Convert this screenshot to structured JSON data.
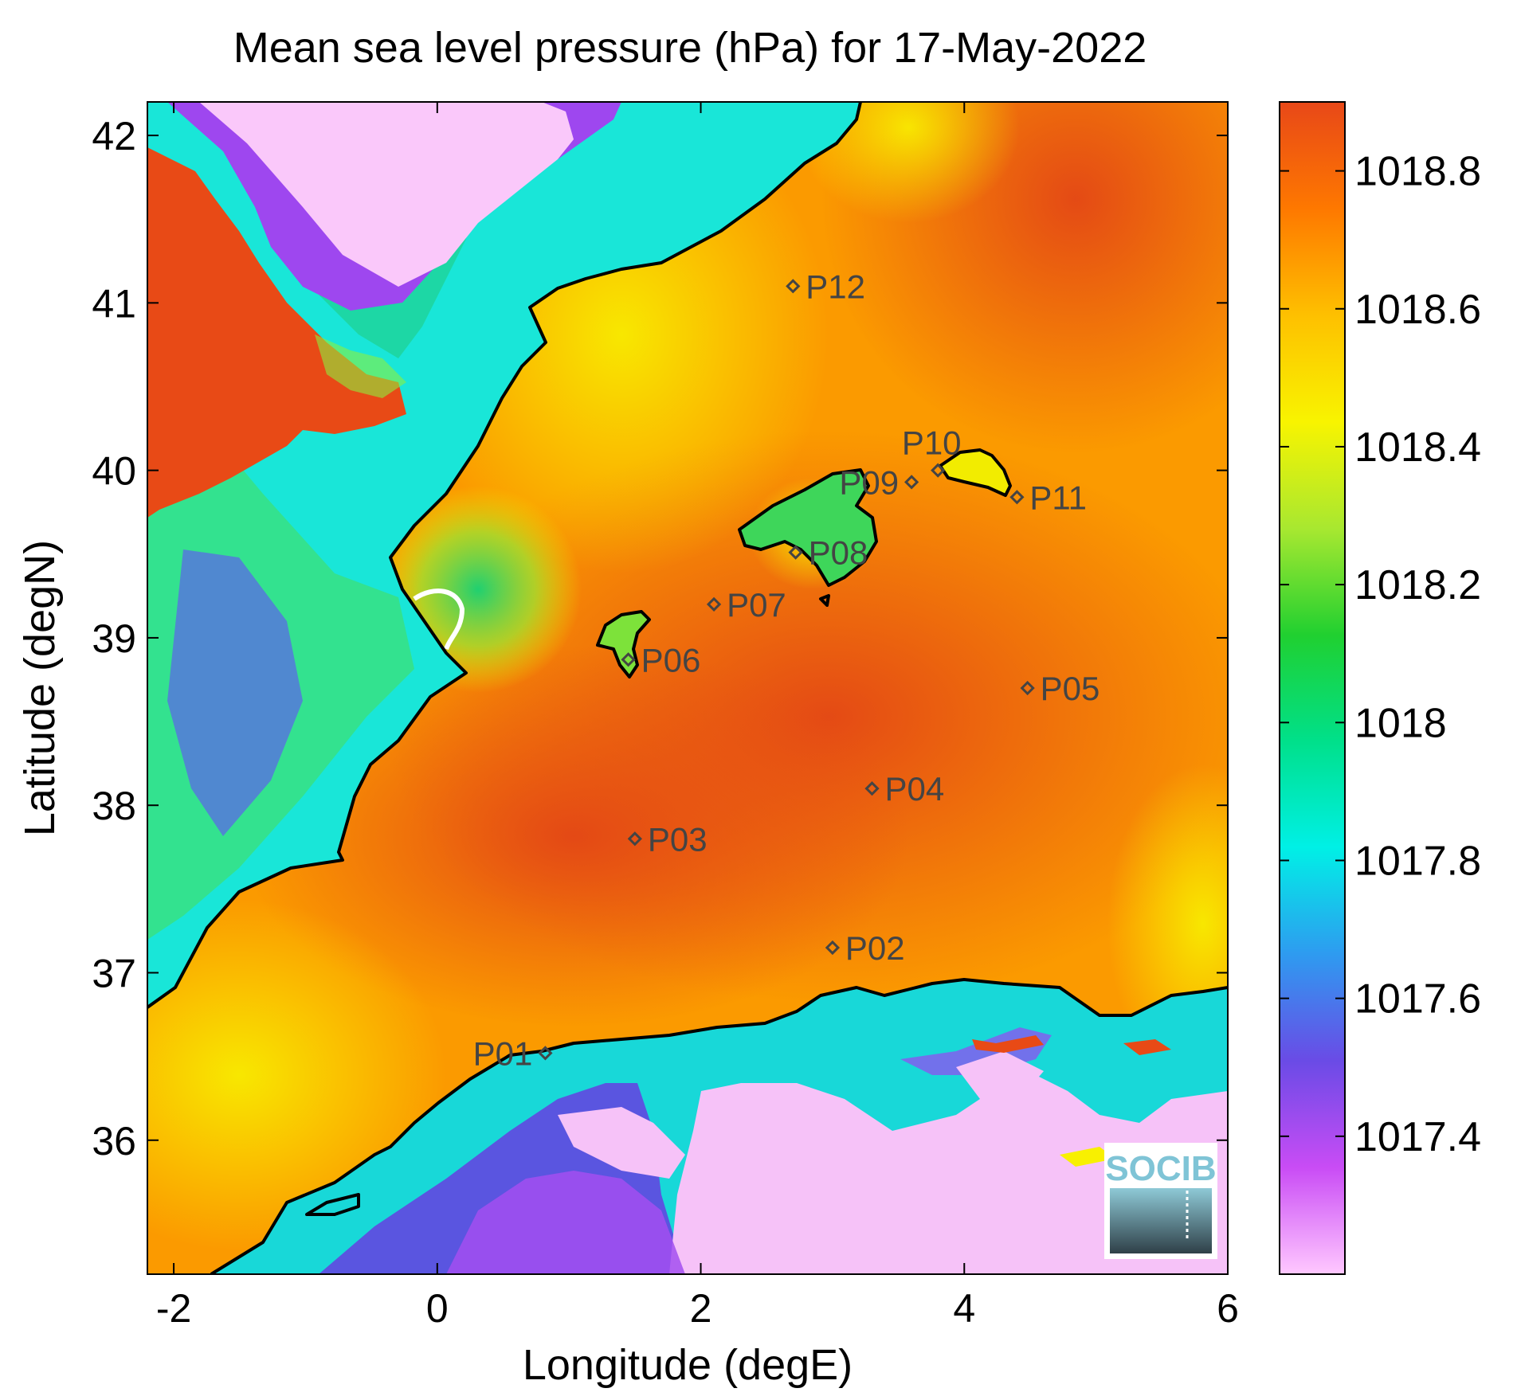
{
  "title": "Mean sea level pressure (hPa) for 17-May-2022",
  "x_axis": {
    "label": "Longitude (degE)",
    "range": [
      -2.2,
      6.0
    ],
    "ticks": [
      {
        "value": -2,
        "label": "-2"
      },
      {
        "value": 0,
        "label": "0"
      },
      {
        "value": 2,
        "label": "2"
      },
      {
        "value": 4,
        "label": "4"
      },
      {
        "value": 6,
        "label": "6"
      }
    ]
  },
  "y_axis": {
    "label": "Latitude (degN)",
    "range": [
      35.2,
      42.2
    ],
    "ticks": [
      {
        "value": 36,
        "label": "36"
      },
      {
        "value": 37,
        "label": "37"
      },
      {
        "value": 38,
        "label": "38"
      },
      {
        "value": 39,
        "label": "39"
      },
      {
        "value": 40,
        "label": "40"
      },
      {
        "value": 41,
        "label": "41"
      },
      {
        "value": 42,
        "label": "42"
      }
    ]
  },
  "colorbar": {
    "range": [
      1017.2,
      1018.9
    ],
    "ticks": [
      {
        "value": 1017.4,
        "label": "1017.4"
      },
      {
        "value": 1017.6,
        "label": "1017.6"
      },
      {
        "value": 1017.8,
        "label": "1017.8"
      },
      {
        "value": 1018.0,
        "label": "1018"
      },
      {
        "value": 1018.2,
        "label": "1018.2"
      },
      {
        "value": 1018.4,
        "label": "1018.4"
      },
      {
        "value": 1018.6,
        "label": "1018.6"
      },
      {
        "value": 1018.8,
        "label": "1018.8"
      }
    ],
    "colors": [
      "#ffc8ff",
      "#c94cf5",
      "#6a4be6",
      "#2e9bf0",
      "#00f0e6",
      "#00e08a",
      "#20d030",
      "#a8e830",
      "#f8f400",
      "#fec000",
      "#fe7800",
      "#e84818"
    ]
  },
  "stations": [
    {
      "id": "P01",
      "lon": 0.82,
      "lat": 36.52,
      "label_side": "left"
    },
    {
      "id": "P02",
      "lon": 3.0,
      "lat": 37.15,
      "label_side": "right"
    },
    {
      "id": "P03",
      "lon": 1.5,
      "lat": 37.8,
      "label_side": "right"
    },
    {
      "id": "P04",
      "lon": 3.3,
      "lat": 38.1,
      "label_side": "right"
    },
    {
      "id": "P05",
      "lon": 4.48,
      "lat": 38.7,
      "label_side": "right"
    },
    {
      "id": "P06",
      "lon": 1.45,
      "lat": 38.87,
      "label_side": "right"
    },
    {
      "id": "P07",
      "lon": 2.1,
      "lat": 39.2,
      "label_side": "right"
    },
    {
      "id": "P08",
      "lon": 2.72,
      "lat": 39.51,
      "label_side": "right"
    },
    {
      "id": "P09",
      "lon": 3.6,
      "lat": 39.93,
      "label_side": "left"
    },
    {
      "id": "P10",
      "lon": 3.8,
      "lat": 40.0,
      "label_side": "above"
    },
    {
      "id": "P11",
      "lon": 4.4,
      "lat": 39.84,
      "label_side": "right"
    },
    {
      "id": "P12",
      "lon": 2.7,
      "lat": 41.1,
      "label_side": "right"
    }
  ],
  "logo": {
    "text": "SOCIB",
    "icon": "socib-logo"
  }
}
